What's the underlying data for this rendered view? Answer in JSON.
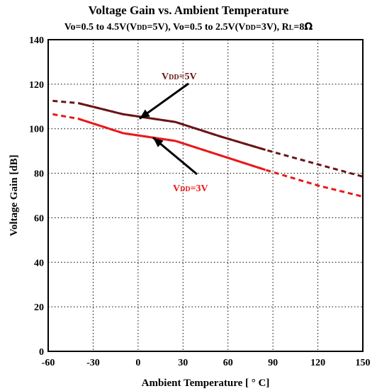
{
  "chart_data": {
    "type": "line",
    "title": "Voltage Gain vs. Ambient Temperature",
    "subtitle": {
      "part1": "Vo=0.5 to 4.5V(V",
      "part1_sub": "DD",
      "part2": "=5V), Vo=0.5 to 2.5V(V",
      "part2_sub": "DD",
      "part3": "=3V), R",
      "part3_sub": "L",
      "part4": "=8",
      "part4_sym": "Ω"
    },
    "xlabel": "Ambient Temperature [ ° C]",
    "ylabel": "Voltage Gain [dB]",
    "xlim": [
      -60,
      150
    ],
    "ylim": [
      0,
      140
    ],
    "xticks": [
      -60,
      -30,
      0,
      30,
      60,
      90,
      120,
      150
    ],
    "yticks": [
      0,
      20,
      40,
      60,
      80,
      100,
      120,
      140
    ],
    "grid": true,
    "series": [
      {
        "name": "VDD=5V",
        "color": "#6b1515",
        "solid_range": [
          -40,
          85
        ],
        "x": [
          -57,
          -40,
          -10,
          25,
          55,
          85,
          120,
          150
        ],
        "values": [
          112.5,
          111.5,
          106.5,
          103,
          96.5,
          90.5,
          84,
          78.5
        ]
      },
      {
        "name": "VDD=3V",
        "color": "#e8191c",
        "solid_range": [
          -40,
          85
        ],
        "x": [
          -57,
          -40,
          -10,
          25,
          55,
          85,
          120,
          150
        ],
        "values": [
          106.5,
          104.5,
          98,
          94.5,
          88,
          81.5,
          74.5,
          69.5
        ]
      }
    ],
    "annotations": [
      {
        "series": "VDD=5V",
        "prefix": "V",
        "sub": "DD",
        "suffix": "=5V",
        "color": "#6b1515",
        "arrow_to": [
          1,
          104.5
        ]
      },
      {
        "series": "VDD=3V",
        "prefix": "V",
        "sub": "DD",
        "suffix": "=3V",
        "color": "#e8191c",
        "arrow_to": [
          10,
          96
        ]
      }
    ]
  }
}
